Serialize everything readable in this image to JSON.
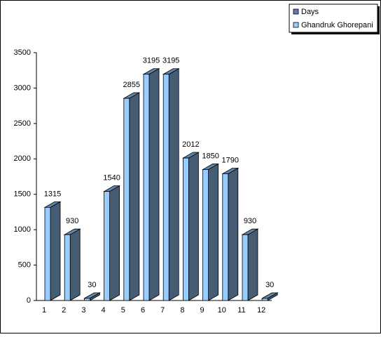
{
  "chart_data": {
    "type": "bar3d",
    "categories": [
      "1",
      "2",
      "3",
      "4",
      "5",
      "6",
      "7",
      "8",
      "9",
      "10",
      "11",
      "12"
    ],
    "series": [
      {
        "values": [
          1315,
          930,
          30,
          1540,
          2855,
          3195,
          3195,
          2012,
          1850,
          1790,
          930,
          30
        ],
        "color": "#99ccff"
      }
    ],
    "legend": [
      {
        "name": "Days",
        "color": "#6677bb"
      },
      {
        "name": "Ghandruk Ghorepani",
        "color": "#99ccff"
      }
    ],
    "legend_position": "upper right",
    "ylim": [
      0,
      3500
    ],
    "yticks": [
      0,
      500,
      1000,
      1500,
      2000,
      2500,
      3000,
      3500
    ]
  }
}
